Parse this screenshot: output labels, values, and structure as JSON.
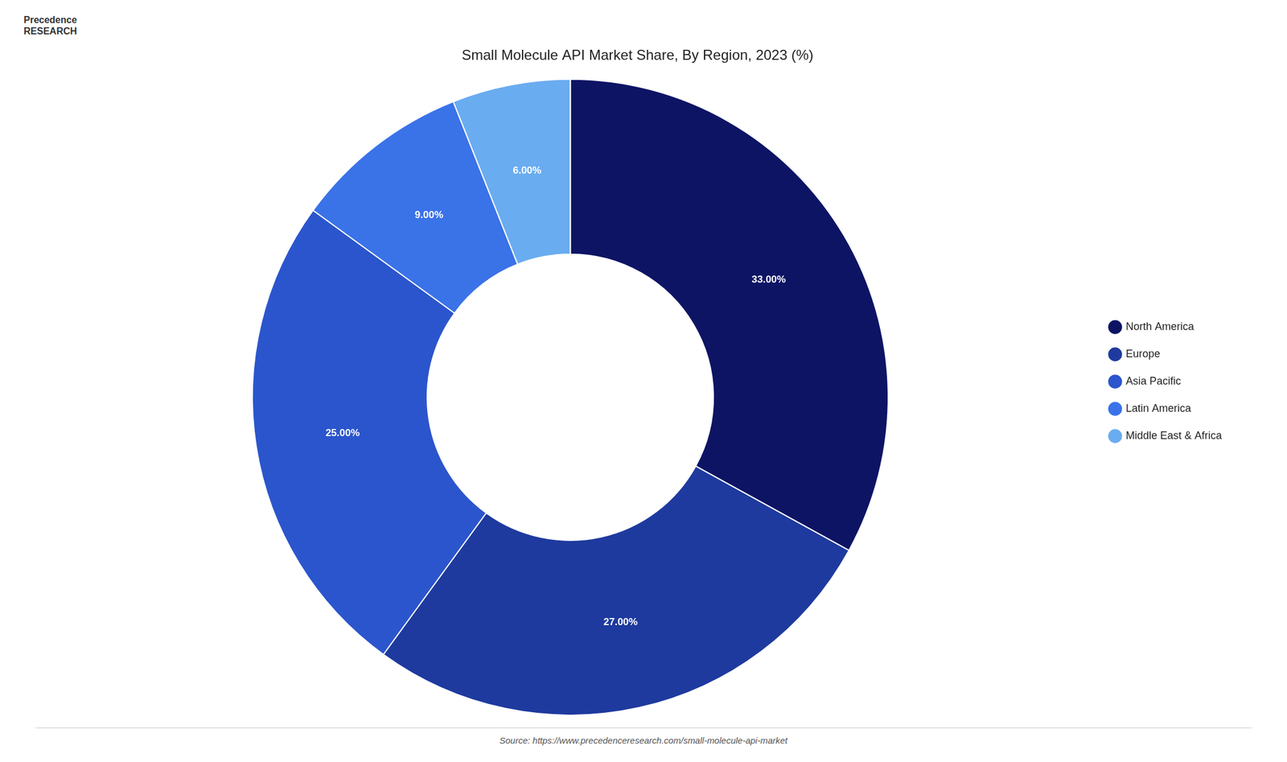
{
  "chart_data": {
    "type": "doughnut",
    "title": "Small Molecule API Market Share, By Region, 2023 (%)",
    "categories": [
      "North America",
      "Europe",
      "Asia Pacific",
      "Latin America",
      "Middle East & Africa"
    ],
    "values": [
      33.0,
      27.0,
      25.0,
      9.0,
      6.0
    ],
    "value_labels": [
      "33.00%",
      "27.00%",
      "25.00%",
      "9.00%",
      "6.00%"
    ],
    "colors": [
      "#0d1464",
      "#1e3a9e",
      "#2b55cc",
      "#3a72e8",
      "#6aacf0"
    ],
    "data_labels": true,
    "legend": "right",
    "annotations": [
      "Precedence\nRESEARCH",
      "Source: https://www.precedenceresearch.com/small-molecule-api-market"
    ]
  }
}
